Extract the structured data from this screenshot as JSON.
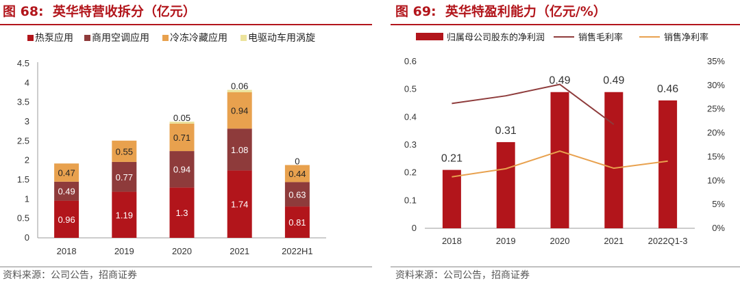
{
  "source_left": "资料来源：公司公告，招商证券",
  "source_right": "资料来源：公司公告，招商证券",
  "chart_data": [
    {
      "figure_label": "图 68:",
      "title": "英华特营收拆分（亿元）",
      "type": "bar",
      "stacked": true,
      "categories": [
        "2018",
        "2019",
        "2020",
        "2021",
        "2022H1"
      ],
      "series": [
        {
          "name": "热泵应用",
          "color": "#b2151b",
          "values": [
            0.96,
            1.19,
            1.3,
            1.74,
            0.81
          ]
        },
        {
          "name": "商用空调应用",
          "color": "#8e3b3b",
          "values": [
            0.49,
            0.77,
            0.94,
            1.08,
            0.63
          ]
        },
        {
          "name": "冷冻冷藏应用",
          "color": "#e8a14e",
          "values": [
            0.47,
            0.55,
            0.71,
            0.94,
            0.44
          ]
        },
        {
          "name": "电驱动车用涡旋",
          "color": "#ece39c",
          "values": [
            0,
            0,
            0.05,
            0.06,
            0
          ]
        }
      ],
      "data_labels": [
        [
          "0.96",
          "1.19",
          "1.3",
          "1.74",
          "0.81"
        ],
        [
          "0.49",
          "0.77",
          "0.94",
          "1.08",
          "0.63"
        ],
        [
          "0.47",
          "0.55",
          "0.71",
          "0.94",
          "0.44"
        ],
        [
          "",
          "",
          "0.05",
          "0.06",
          "0"
        ]
      ],
      "ylim": [
        0,
        4.5
      ],
      "yticks": [
        "0",
        "0.5",
        "1",
        "1.5",
        "2",
        "2.5",
        "3",
        "3.5",
        "4",
        "4.5"
      ],
      "legend_position": "top",
      "grid": false
    },
    {
      "figure_label": "图 69:",
      "title": "英华特盈利能力（亿元/%）",
      "type": "bar",
      "categories": [
        "2018",
        "2019",
        "2020",
        "2021",
        "2022Q1-3"
      ],
      "bar_series": {
        "name": "归属母公司股东的净利润",
        "color": "#b2151b",
        "values": [
          0.21,
          0.31,
          0.49,
          0.49,
          0.46
        ],
        "labels": [
          "0.21",
          "0.31",
          "0.49",
          "0.49",
          "0.46"
        ]
      },
      "line_series": [
        {
          "name": "销售毛利率",
          "color": "#8e3b3b",
          "values": [
            26.2,
            27.8,
            30.2,
            21.8,
            null
          ]
        },
        {
          "name": "销售净利率",
          "color": "#e8a14e",
          "values": [
            10.8,
            12.5,
            16.2,
            12.6,
            14.1
          ]
        }
      ],
      "ylim": [
        0,
        0.6
      ],
      "yticks": [
        "0",
        "0.1",
        "0.2",
        "0.3",
        "0.4",
        "0.5",
        "0.6"
      ],
      "y2lim": [
        0,
        35
      ],
      "y2ticks": [
        "0%",
        "5%",
        "10%",
        "15%",
        "20%",
        "25%",
        "30%",
        "35%"
      ],
      "legend_position": "top",
      "grid": false
    }
  ]
}
